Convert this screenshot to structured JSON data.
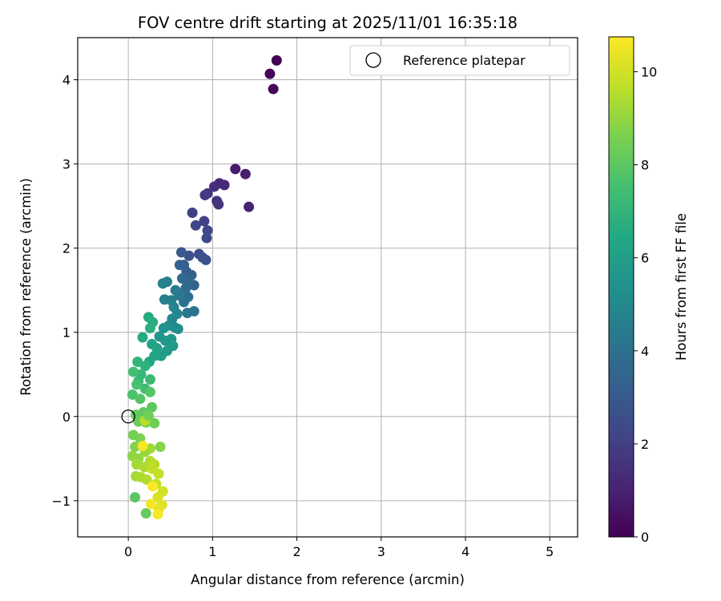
{
  "chart_data": {
    "type": "scatter",
    "title": "FOV centre drift starting at 2025/11/01 16:35:18",
    "xlabel": "Angular distance from reference (arcmin)",
    "ylabel": "Rotation from reference (arcmin)",
    "xlim": [
      -0.6,
      5.33
    ],
    "ylim": [
      -1.43,
      4.5
    ],
    "x_ticks": [
      0,
      1,
      2,
      3,
      4,
      5
    ],
    "y_ticks": [
      -1,
      0,
      1,
      2,
      3,
      4
    ],
    "x_tick_labels": [
      "0",
      "1",
      "2",
      "3",
      "4",
      "5"
    ],
    "y_tick_labels": [
      "−1",
      "0",
      "1",
      "2",
      "3",
      "4"
    ],
    "grid": true,
    "legend_position": "top-right",
    "legend_label": "Reference platepar",
    "reference_point": {
      "x": 0,
      "y": 0
    },
    "colorbar": {
      "label": "Hours from first FF file",
      "range": [
        0,
        10.75
      ],
      "ticks": [
        0,
        2,
        4,
        6,
        8,
        10
      ],
      "tick_labels": [
        "0",
        "2",
        "4",
        "6",
        "8",
        "10"
      ],
      "colormap": "viridis"
    },
    "points": [
      [
        1.76,
        4.23,
        0.0
      ],
      [
        1.68,
        4.07,
        0.1
      ],
      [
        1.72,
        3.89,
        0.2
      ],
      [
        1.27,
        2.94,
        0.8
      ],
      [
        1.39,
        2.88,
        0.9
      ],
      [
        1.43,
        2.49,
        1.0
      ],
      [
        1.08,
        2.77,
        1.2
      ],
      [
        1.14,
        2.75,
        1.3
      ],
      [
        1.02,
        2.73,
        1.4
      ],
      [
        1.05,
        2.56,
        1.5
      ],
      [
        1.07,
        2.52,
        1.6
      ],
      [
        0.94,
        2.65,
        1.7
      ],
      [
        0.91,
        2.63,
        1.8
      ],
      [
        0.76,
        2.42,
        2.0
      ],
      [
        0.9,
        2.32,
        2.1
      ],
      [
        0.8,
        2.27,
        2.2
      ],
      [
        0.94,
        2.21,
        2.3
      ],
      [
        0.93,
        2.12,
        2.4
      ],
      [
        0.84,
        1.93,
        2.5
      ],
      [
        0.88,
        1.89,
        2.6
      ],
      [
        0.92,
        1.86,
        2.7
      ],
      [
        0.72,
        1.91,
        2.8
      ],
      [
        0.63,
        1.95,
        3.0
      ],
      [
        0.66,
        1.8,
        3.1
      ],
      [
        0.69,
        1.72,
        3.2
      ],
      [
        0.61,
        1.8,
        3.3
      ],
      [
        0.75,
        1.68,
        3.4
      ],
      [
        0.78,
        1.56,
        3.5
      ],
      [
        0.7,
        1.58,
        3.6
      ],
      [
        0.64,
        1.64,
        3.7
      ],
      [
        0.68,
        1.52,
        3.8
      ],
      [
        0.71,
        1.42,
        3.9
      ],
      [
        0.66,
        1.36,
        4.0
      ],
      [
        0.78,
        1.25,
        4.1
      ],
      [
        0.7,
        1.23,
        4.2
      ],
      [
        0.6,
        1.44,
        4.3
      ],
      [
        0.56,
        1.5,
        4.4
      ],
      [
        0.51,
        1.38,
        4.5
      ],
      [
        0.43,
        1.39,
        4.6
      ],
      [
        0.46,
        1.6,
        4.6
      ],
      [
        0.41,
        1.58,
        4.7
      ],
      [
        0.54,
        1.3,
        4.8
      ],
      [
        0.58,
        1.22,
        4.9
      ],
      [
        0.52,
        1.16,
        5.0
      ],
      [
        0.55,
        1.06,
        5.1
      ],
      [
        0.59,
        1.04,
        5.2
      ],
      [
        0.48,
        1.08,
        5.3
      ],
      [
        0.42,
        1.05,
        5.4
      ],
      [
        0.37,
        0.95,
        5.5
      ],
      [
        0.44,
        0.9,
        5.6
      ],
      [
        0.51,
        0.92,
        5.7
      ],
      [
        0.53,
        0.84,
        5.8
      ],
      [
        0.46,
        0.78,
        5.9
      ],
      [
        0.39,
        0.72,
        6.0
      ],
      [
        0.34,
        0.81,
        6.1
      ],
      [
        0.28,
        0.86,
        6.2
      ],
      [
        0.31,
        0.72,
        6.3
      ],
      [
        0.25,
        0.65,
        6.4
      ],
      [
        0.17,
        0.94,
        6.5
      ],
      [
        0.24,
        1.18,
        6.6
      ],
      [
        0.29,
        1.12,
        6.7
      ],
      [
        0.26,
        1.05,
        6.8
      ],
      [
        0.2,
        0.6,
        6.9
      ],
      [
        0.11,
        0.65,
        7.0
      ],
      [
        0.15,
        0.5,
        7.1
      ],
      [
        0.12,
        0.42,
        7.2
      ],
      [
        0.26,
        0.44,
        7.3
      ],
      [
        0.2,
        0.33,
        7.4
      ],
      [
        0.06,
        0.53,
        7.5
      ],
      [
        0.1,
        0.38,
        7.6
      ],
      [
        0.05,
        0.26,
        7.7
      ],
      [
        0.14,
        0.21,
        7.8
      ],
      [
        0.26,
        0.29,
        7.9
      ],
      [
        0.28,
        0.11,
        8.0
      ],
      [
        0.18,
        0.05,
        8.1
      ],
      [
        0.09,
        0.02,
        8.2
      ],
      [
        0.12,
        -0.06,
        8.3
      ],
      [
        0.21,
        -0.07,
        8.3
      ],
      [
        0.31,
        -0.08,
        8.4
      ],
      [
        0.06,
        -0.22,
        8.5
      ],
      [
        0.14,
        -0.26,
        8.6
      ],
      [
        0.08,
        -0.36,
        8.7
      ],
      [
        0.38,
        -0.36,
        8.8
      ],
      [
        0.05,
        -0.47,
        8.9
      ],
      [
        0.12,
        -0.5,
        9.0
      ],
      [
        0.2,
        -0.42,
        9.1
      ],
      [
        0.26,
        -0.38,
        9.2
      ],
      [
        0.1,
        -0.57,
        9.3
      ],
      [
        0.19,
        -0.6,
        9.4
      ],
      [
        0.26,
        -0.53,
        9.5
      ],
      [
        0.31,
        -0.57,
        9.6
      ],
      [
        0.28,
        -0.62,
        9.7
      ],
      [
        0.36,
        -0.68,
        9.8
      ],
      [
        0.09,
        -0.71,
        9.3
      ],
      [
        0.15,
        -0.72,
        9.4
      ],
      [
        0.22,
        -0.75,
        9.5
      ],
      [
        0.33,
        -0.8,
        9.8
      ],
      [
        0.41,
        -0.89,
        10.0
      ],
      [
        0.35,
        -0.96,
        10.1
      ],
      [
        0.4,
        -1.05,
        10.2
      ],
      [
        0.36,
        -1.1,
        10.3
      ],
      [
        0.08,
        -0.96,
        8.0
      ],
      [
        0.21,
        -1.15,
        8.2
      ],
      [
        0.27,
        -1.04,
        10.6
      ],
      [
        0.35,
        -1.16,
        10.7
      ],
      [
        0.29,
        -0.83,
        10.75
      ],
      [
        0.17,
        -0.35,
        10.6
      ],
      [
        0.2,
        -0.05,
        9.6
      ],
      [
        0.24,
        0.01,
        8.4
      ]
    ]
  }
}
